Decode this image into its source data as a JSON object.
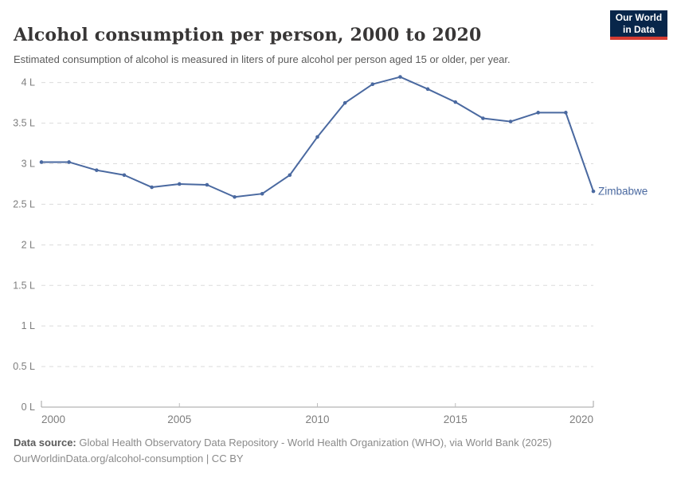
{
  "header": {
    "title": "Alcohol consumption per person, 2000 to 2020",
    "subtitle": "Estimated consumption of alcohol is measured in liters of pure alcohol per person aged 15 or older, per year.",
    "logo": {
      "line1": "Our World",
      "line2": "in Data",
      "bg_color": "#08264a",
      "bar_color": "#d53c32"
    }
  },
  "chart_data": {
    "type": "line",
    "title": "Alcohol consumption per person, 2000 to 2020",
    "xlabel": "",
    "ylabel": "",
    "unit": "liters of pure alcohol per person (aged 15+) per year",
    "xlim": [
      2000,
      2020
    ],
    "ylim": [
      0,
      4.1
    ],
    "grid": "horizontal-dashed",
    "legend_position": "end-of-line",
    "x": [
      2000,
      2001,
      2002,
      2003,
      2004,
      2005,
      2006,
      2007,
      2008,
      2009,
      2010,
      2011,
      2012,
      2013,
      2014,
      2015,
      2016,
      2017,
      2018,
      2019,
      2020
    ],
    "series": [
      {
        "name": "Zimbabwe",
        "color": "#4a69a0",
        "values": [
          3.02,
          3.02,
          2.92,
          2.86,
          2.71,
          2.75,
          2.74,
          2.59,
          2.63,
          2.86,
          3.33,
          3.75,
          3.98,
          4.07,
          3.92,
          3.76,
          3.56,
          3.52,
          3.63,
          3.63,
          2.66
        ]
      }
    ],
    "x_ticks": [
      2000,
      2005,
      2010,
      2015,
      2020
    ],
    "y_ticks": [
      {
        "value": 0,
        "label": "0 L"
      },
      {
        "value": 0.5,
        "label": "0.5 L"
      },
      {
        "value": 1,
        "label": "1 L"
      },
      {
        "value": 1.5,
        "label": "1.5 L"
      },
      {
        "value": 2,
        "label": "2 L"
      },
      {
        "value": 2.5,
        "label": "2.5 L"
      },
      {
        "value": 3,
        "label": "3 L"
      },
      {
        "value": 3.5,
        "label": "3.5 L"
      },
      {
        "value": 4,
        "label": "4 L"
      }
    ]
  },
  "footer": {
    "source_label": "Data source:",
    "source_text": " Global Health Observatory Data Repository - World Health Organization (WHO), via World Bank (2025)",
    "license_line": "OurWorldinData.org/alcohol-consumption | CC BY"
  },
  "colors": {
    "grid": "#dcdcdc",
    "axis": "#a0a0a0",
    "tick": "#bdbdbd",
    "axis_text": "#7e7e7e",
    "title_text": "#383636",
    "subtitle_text": "#5b5b5b"
  }
}
